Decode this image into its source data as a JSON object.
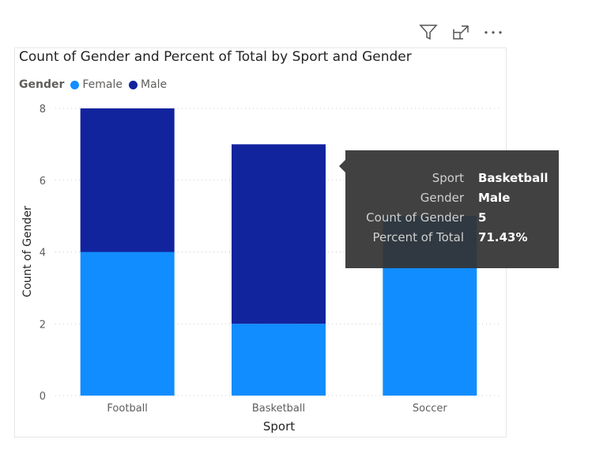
{
  "visual_header": {
    "icons": [
      "filter-icon",
      "focus-mode-icon",
      "more-options-icon"
    ]
  },
  "chart_data": {
    "type": "bar",
    "stacked": true,
    "title": "Count of Gender and Percent of Total by Sport and Gender",
    "legend": {
      "title": "Gender",
      "placement": "top-left",
      "entries": [
        "Female",
        "Male"
      ]
    },
    "categories": [
      "Football",
      "Basketball",
      "Soccer"
    ],
    "series": [
      {
        "name": "Female",
        "color": "#118DFF",
        "values": [
          4,
          2,
          5
        ]
      },
      {
        "name": "Male",
        "color": "#12239E",
        "values": [
          4,
          5,
          0
        ]
      }
    ],
    "xlabel": "Sport",
    "ylabel": "Count of Gender",
    "ylim": [
      0,
      8
    ],
    "yticks": [
      "0",
      "2",
      "4",
      "6",
      "8"
    ],
    "grid": true
  },
  "tooltip": {
    "rows": [
      {
        "key": "Sport",
        "value": "Basketball"
      },
      {
        "key": "Gender",
        "value": "Male"
      },
      {
        "key": "Count of Gender",
        "value": "5"
      },
      {
        "key": "Percent of Total",
        "value": "71.43%"
      }
    ]
  }
}
